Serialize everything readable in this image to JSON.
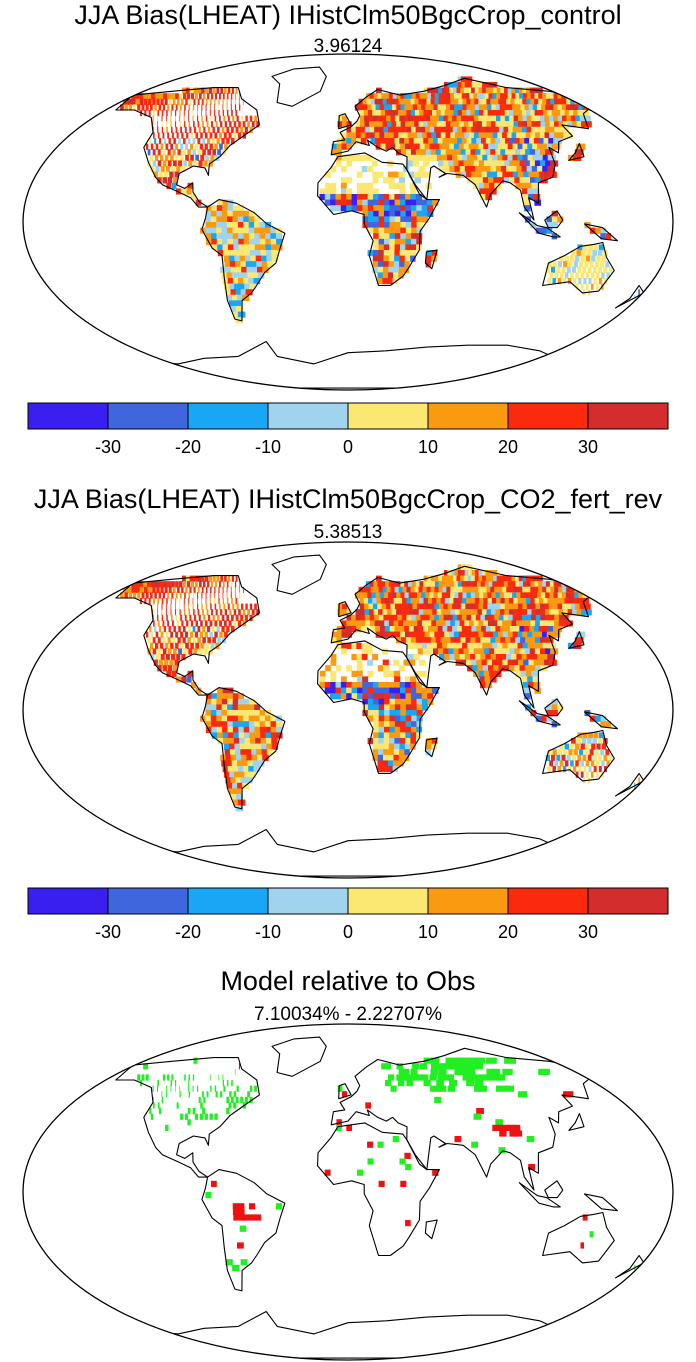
{
  "panels": [
    {
      "title": "JJA Bias(LHEAT) IHistClm50BgcCrop_control",
      "value": "3.96124"
    },
    {
      "title": "JJA Bias(LHEAT) IHistClm50BgcCrop_CO2_fert_rev",
      "value": "5.38513"
    },
    {
      "title": "Model relative to Obs",
      "value": "7.10034% - 2.22707%"
    }
  ],
  "colorbar": {
    "colors": [
      "#3a20f0",
      "#3f66dd",
      "#19a6f5",
      "#9fd3ee",
      "#fbe873",
      "#f99a10",
      "#fb2a0d",
      "#d42d2d"
    ],
    "tick_labels": [
      "-30",
      "-20",
      "-10",
      "0",
      "10",
      "20",
      "30"
    ]
  },
  "comparison_colors": {
    "better": "#22ee22",
    "worse": "#ee1111"
  }
}
